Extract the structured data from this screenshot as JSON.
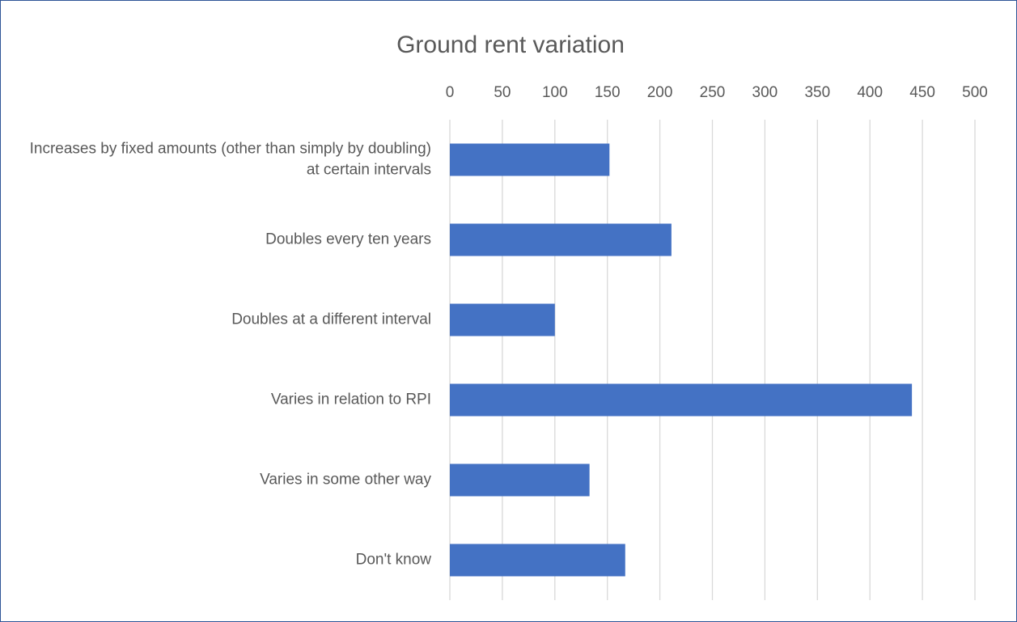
{
  "chart_data": {
    "type": "bar",
    "orientation": "horizontal",
    "title": "Ground rent variation",
    "categories": [
      "Increases by fixed amounts (other than simply by doubling) at certain intervals",
      "Doubles every ten years",
      "Doubles at a different interval",
      "Varies in relation to RPI",
      "Varies in some other way",
      "Don't know"
    ],
    "values": [
      152,
      211,
      100,
      440,
      133,
      167
    ],
    "color": "#4472c4",
    "xlim": [
      0,
      500
    ],
    "xticks": [
      0,
      50,
      100,
      150,
      200,
      250,
      300,
      350,
      400,
      450,
      500
    ],
    "grid": true
  }
}
